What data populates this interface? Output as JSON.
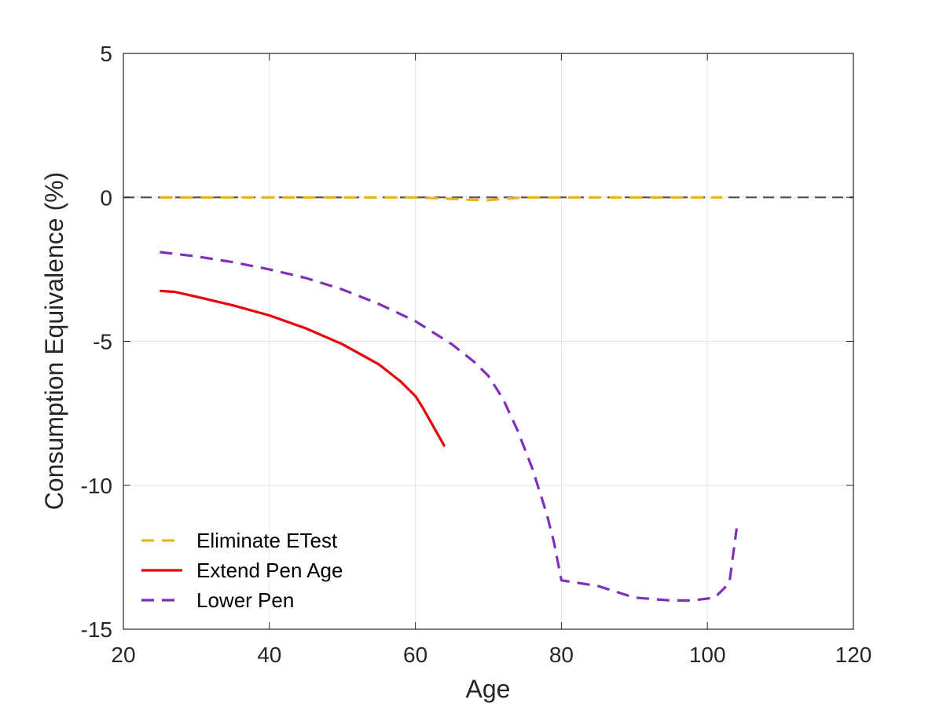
{
  "chart_data": {
    "type": "line",
    "title": "",
    "xlabel": "Age",
    "ylabel": "Consumption Equivalence (%)",
    "xlim": [
      20,
      120
    ],
    "ylim": [
      -15,
      5
    ],
    "xticks": [
      20,
      40,
      60,
      80,
      100,
      120
    ],
    "yticks": [
      -15,
      -10,
      -5,
      0,
      5
    ],
    "xtick_labels": [
      "20",
      "40",
      "60",
      "80",
      "100",
      "120"
    ],
    "ytick_labels": [
      "-15",
      "-10",
      "-5",
      "0",
      "5"
    ],
    "grid": true,
    "legend_position": "bottom-left",
    "reference_line": {
      "y": 0,
      "color": "#555555",
      "style": "dashed"
    },
    "series": [
      {
        "name": "Eliminate ETest",
        "color": "#EDB120",
        "style": "dashed",
        "x": [
          25,
          30,
          35,
          40,
          45,
          50,
          55,
          60,
          65,
          67,
          70,
          72,
          75,
          80,
          85,
          90,
          95,
          100,
          102
        ],
        "y": [
          0,
          0,
          0,
          0,
          0,
          0,
          0,
          0,
          -0.05,
          -0.08,
          -0.1,
          -0.05,
          0,
          0,
          0,
          0,
          0,
          0,
          0
        ]
      },
      {
        "name": "Extend Pen Age",
        "color": "#E8000B",
        "style": "solid",
        "x": [
          25,
          27,
          30,
          35,
          40,
          45,
          50,
          55,
          58,
          60,
          61,
          62,
          64
        ],
        "y": [
          -3.25,
          -3.28,
          -3.45,
          -3.75,
          -4.1,
          -4.55,
          -5.1,
          -5.8,
          -6.4,
          -6.9,
          -7.3,
          -7.75,
          -8.65
        ]
      },
      {
        "name": "Lower Pen",
        "color": "#7E2FBE",
        "style": "dashed",
        "x": [
          25,
          30,
          35,
          40,
          45,
          50,
          55,
          60,
          65,
          68,
          70,
          72,
          74,
          76,
          78,
          79,
          80,
          85,
          90,
          95,
          98,
          101,
          103,
          104
        ],
        "y": [
          -1.9,
          -2.05,
          -2.25,
          -2.5,
          -2.8,
          -3.2,
          -3.7,
          -4.3,
          -5.1,
          -5.7,
          -6.2,
          -7.0,
          -8.1,
          -9.4,
          -11.0,
          -12.0,
          -13.3,
          -13.5,
          -13.9,
          -14.0,
          -14.0,
          -13.9,
          -13.4,
          -11.5
        ]
      }
    ]
  }
}
